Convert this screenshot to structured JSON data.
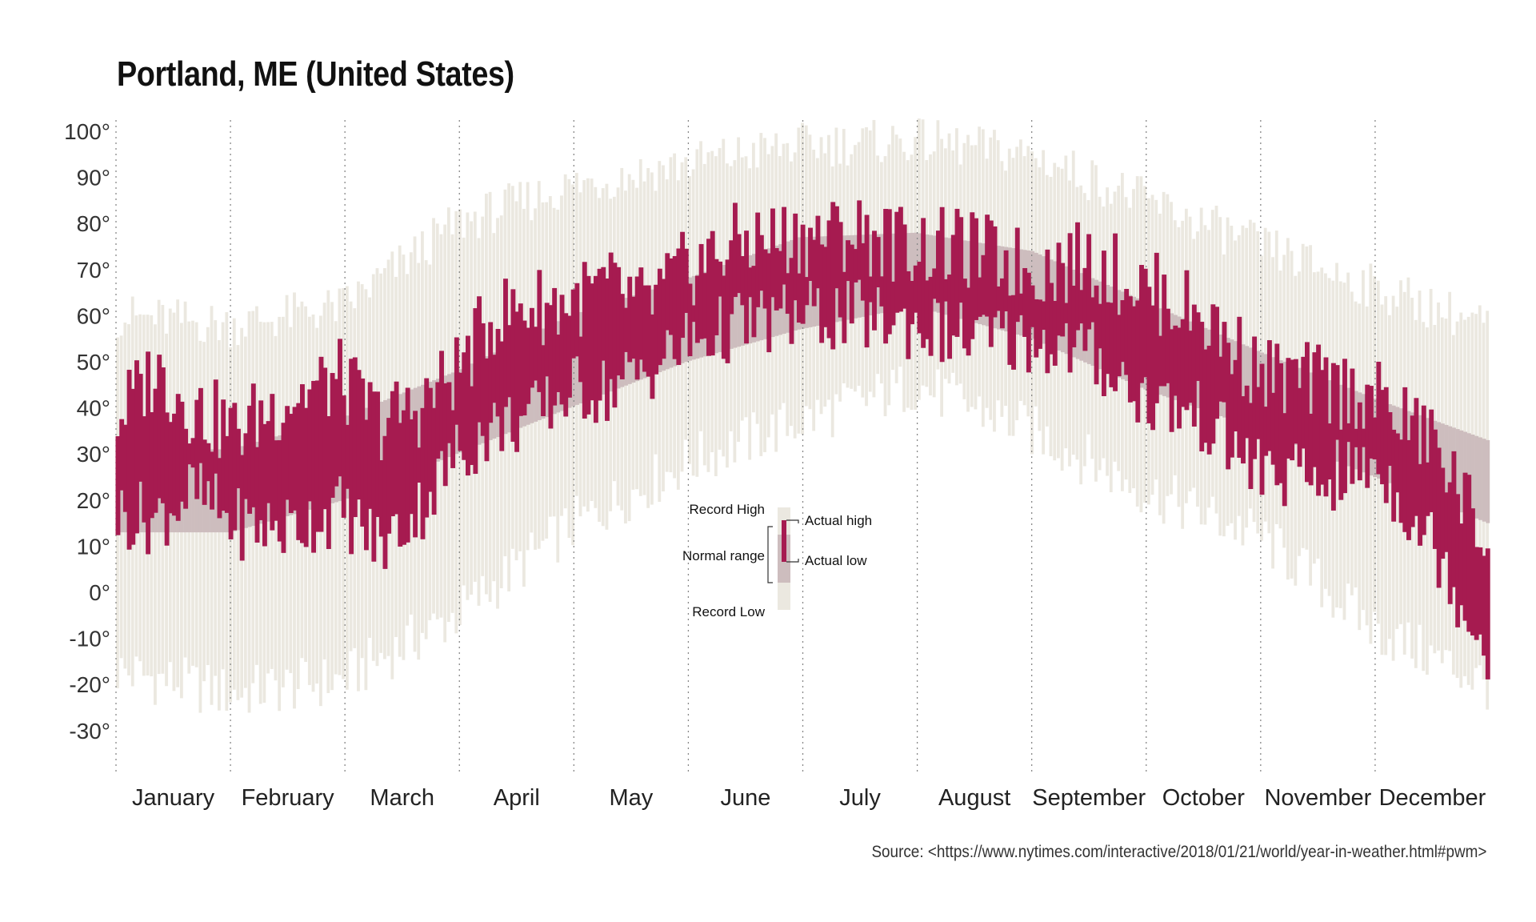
{
  "title": "Portland, ME (United States)",
  "source": "Source: <https://www.nytimes.com/interactive/2018/01/21/world/year-in-weather.html#pwm>",
  "colors": {
    "record": "#ebe8e0",
    "normal": "#cdbdbe",
    "actual": "#a61b50",
    "gridline": "#888888",
    "text": "#333333"
  },
  "chart_data": {
    "type": "bar",
    "title": "Portland, ME (United States)",
    "ylim": [
      -40,
      103
    ],
    "yticks": [
      100,
      90,
      80,
      70,
      60,
      50,
      40,
      30,
      20,
      10,
      0,
      -10,
      -20,
      -30
    ],
    "ytick_labels": [
      "100°",
      "90°",
      "80°",
      "70°",
      "60°",
      "50°",
      "40°",
      "30°",
      "20°",
      "10°",
      "0°",
      "-10°",
      "-20°",
      "-30°"
    ],
    "months": [
      "January",
      "February",
      "March",
      "April",
      "May",
      "June",
      "July",
      "August",
      "September",
      "October",
      "November",
      "December"
    ],
    "days": 365,
    "normal_range_anchors": [
      {
        "day": 0,
        "low": 13,
        "high": 31
      },
      {
        "day": 30,
        "low": 13,
        "high": 31
      },
      {
        "day": 60,
        "low": 20,
        "high": 38
      },
      {
        "day": 90,
        "low": 30,
        "high": 48
      },
      {
        "day": 120,
        "low": 40,
        "high": 60
      },
      {
        "day": 151,
        "low": 50,
        "high": 68
      },
      {
        "day": 181,
        "low": 57,
        "high": 77
      },
      {
        "day": 212,
        "low": 62,
        "high": 78
      },
      {
        "day": 243,
        "low": 55,
        "high": 74
      },
      {
        "day": 273,
        "low": 44,
        "high": 63
      },
      {
        "day": 304,
        "low": 35,
        "high": 52
      },
      {
        "day": 334,
        "low": 25,
        "high": 42
      },
      {
        "day": 364,
        "low": 15,
        "high": 33
      }
    ],
    "record_range_anchors": [
      {
        "day": 0,
        "low": -17,
        "high": 60
      },
      {
        "day": 30,
        "low": -22,
        "high": 58
      },
      {
        "day": 60,
        "low": -19,
        "high": 62
      },
      {
        "day": 90,
        "low": -5,
        "high": 80
      },
      {
        "day": 120,
        "low": 14,
        "high": 88
      },
      {
        "day": 151,
        "low": 28,
        "high": 93
      },
      {
        "day": 181,
        "low": 37,
        "high": 97
      },
      {
        "day": 212,
        "low": 45,
        "high": 98
      },
      {
        "day": 243,
        "low": 35,
        "high": 95
      },
      {
        "day": 273,
        "low": 22,
        "high": 85
      },
      {
        "day": 304,
        "low": 12,
        "high": 75
      },
      {
        "day": 334,
        "low": -8,
        "high": 66
      },
      {
        "day": 364,
        "low": -20,
        "high": 58
      }
    ],
    "actual_high_anchors": [
      {
        "day": 0,
        "v": 38
      },
      {
        "day": 10,
        "v": 48
      },
      {
        "day": 20,
        "v": 40
      },
      {
        "day": 31,
        "v": 35
      },
      {
        "day": 45,
        "v": 42
      },
      {
        "day": 59,
        "v": 46
      },
      {
        "day": 70,
        "v": 37
      },
      {
        "day": 80,
        "v": 40
      },
      {
        "day": 90,
        "v": 48
      },
      {
        "day": 100,
        "v": 60
      },
      {
        "day": 110,
        "v": 62
      },
      {
        "day": 120,
        "v": 63
      },
      {
        "day": 130,
        "v": 66
      },
      {
        "day": 140,
        "v": 62
      },
      {
        "day": 151,
        "v": 70
      },
      {
        "day": 165,
        "v": 76
      },
      {
        "day": 181,
        "v": 77
      },
      {
        "day": 196,
        "v": 78
      },
      {
        "day": 212,
        "v": 75
      },
      {
        "day": 228,
        "v": 74
      },
      {
        "day": 243,
        "v": 70
      },
      {
        "day": 258,
        "v": 72
      },
      {
        "day": 273,
        "v": 66
      },
      {
        "day": 288,
        "v": 60
      },
      {
        "day": 304,
        "v": 47
      },
      {
        "day": 320,
        "v": 45
      },
      {
        "day": 334,
        "v": 42
      },
      {
        "day": 350,
        "v": 32
      },
      {
        "day": 364,
        "v": 10
      }
    ],
    "actual_low_anchors": [
      {
        "day": 0,
        "v": 17
      },
      {
        "day": 10,
        "v": 16
      },
      {
        "day": 20,
        "v": 22
      },
      {
        "day": 31,
        "v": 15
      },
      {
        "day": 45,
        "v": 14
      },
      {
        "day": 59,
        "v": 18
      },
      {
        "day": 70,
        "v": 10
      },
      {
        "day": 80,
        "v": 18
      },
      {
        "day": 90,
        "v": 30
      },
      {
        "day": 100,
        "v": 36
      },
      {
        "day": 110,
        "v": 38
      },
      {
        "day": 120,
        "v": 44
      },
      {
        "day": 130,
        "v": 44
      },
      {
        "day": 140,
        "v": 48
      },
      {
        "day": 151,
        "v": 54
      },
      {
        "day": 165,
        "v": 58
      },
      {
        "day": 181,
        "v": 60
      },
      {
        "day": 196,
        "v": 60
      },
      {
        "day": 212,
        "v": 58
      },
      {
        "day": 228,
        "v": 55
      },
      {
        "day": 243,
        "v": 55
      },
      {
        "day": 258,
        "v": 52
      },
      {
        "day": 273,
        "v": 42
      },
      {
        "day": 288,
        "v": 38
      },
      {
        "day": 304,
        "v": 26
      },
      {
        "day": 320,
        "v": 24
      },
      {
        "day": 334,
        "v": 28
      },
      {
        "day": 350,
        "v": 10
      },
      {
        "day": 364,
        "v": -13
      }
    ],
    "legend": {
      "record_high": "Record High",
      "record_low": "Record Low",
      "normal_range": "Normal range",
      "actual_high": "Actual high",
      "actual_low": "Actual low"
    },
    "grid": "vertical dotted lines at month boundaries"
  }
}
